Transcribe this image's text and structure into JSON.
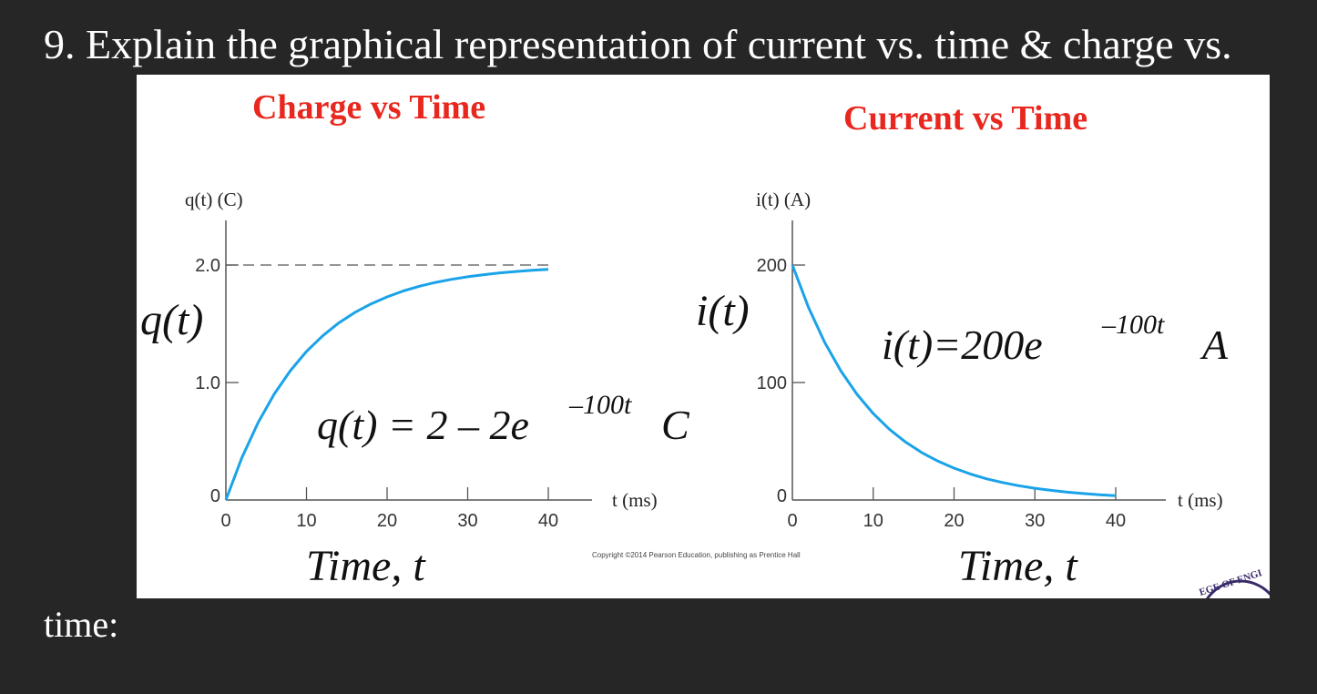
{
  "question": {
    "line1": "9. Explain the graphical representation of current vs. time & charge vs.",
    "line2": "time:"
  },
  "copyright": "Copyright ©2014 Pearson Education, publishing as Prentice Hall",
  "logo_text": "EGE OF ENGI",
  "colors": {
    "curve": "#1aa3e8",
    "title": "#e8281f",
    "background": "#262626"
  },
  "chart_data": [
    {
      "type": "line",
      "title": "Charge vs Time",
      "ylabel": "q(t) (C)",
      "xlabel": "t (ms)",
      "big_ylabel": "q(t)",
      "big_xlabel": "Time, t",
      "equation": {
        "main": "q(t) = 2 – 2e",
        "exponent": "–100t",
        "unit": "C"
      },
      "x_ticks": [
        "0",
        "10",
        "20",
        "30",
        "40"
      ],
      "y_ticks": [
        "0",
        "1.0",
        "2.0"
      ],
      "xlim": [
        0,
        40
      ],
      "ylim": [
        0,
        2
      ],
      "asymptote": 2.0,
      "series": [
        {
          "x": [
            0,
            2,
            4,
            6,
            8,
            10,
            12,
            14,
            16,
            18,
            20,
            22,
            24,
            26,
            28,
            30,
            32,
            34,
            36,
            38,
            40
          ],
          "y": [
            0,
            0.363,
            0.659,
            0.902,
            1.101,
            1.264,
            1.397,
            1.507,
            1.596,
            1.669,
            1.729,
            1.779,
            1.819,
            1.852,
            1.878,
            1.9,
            1.918,
            1.933,
            1.945,
            1.955,
            1.963
          ]
        }
      ]
    },
    {
      "type": "line",
      "title": "Current vs Time",
      "ylabel": "i(t) (A)",
      "xlabel": "t (ms)",
      "big_ylabel": "i(t)",
      "big_xlabel": "Time, t",
      "equation": {
        "main": "i(t)=200e",
        "exponent": "–100t",
        "unit": "A"
      },
      "x_ticks": [
        "0",
        "10",
        "20",
        "30",
        "40"
      ],
      "y_ticks": [
        "0",
        "100",
        "200"
      ],
      "xlim": [
        0,
        40
      ],
      "ylim": [
        0,
        200
      ],
      "series": [
        {
          "x": [
            0,
            2,
            4,
            6,
            8,
            10,
            12,
            14,
            16,
            18,
            20,
            22,
            24,
            26,
            28,
            30,
            32,
            34,
            36,
            38,
            40
          ],
          "y": [
            200,
            163.7,
            134.1,
            109.8,
            89.9,
            73.6,
            60.2,
            49.3,
            40.4,
            33.1,
            27.1,
            22.2,
            18.1,
            14.9,
            12.2,
            10.0,
            8.2,
            6.7,
            5.5,
            4.5,
            3.7
          ]
        }
      ]
    }
  ]
}
